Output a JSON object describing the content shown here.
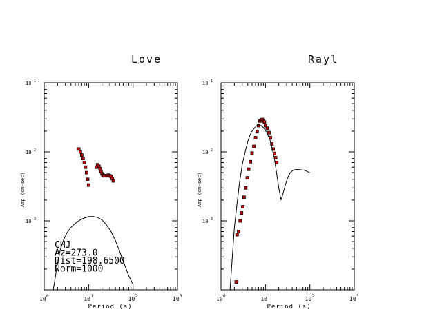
{
  "chart_data": [
    {
      "type": "scatter",
      "title": "Love",
      "xlabel": "Period (s)",
      "ylabel": "Amp (cm-sec)",
      "xscale": "log",
      "yscale": "log",
      "xlim": [
        1,
        1000
      ],
      "ylim": [
        0.0001,
        0.1
      ],
      "x_ticks": [
        "10⁰",
        "10¹",
        "10²",
        "10³"
      ],
      "y_ticks": [
        "10⁻¹",
        "10⁻²",
        "10⁻³"
      ],
      "annotations": [
        "CHJ",
        "Az=273.0",
        "Dist=198.6500",
        "Norm=1000"
      ],
      "series": [
        {
          "mode": "markers",
          "color": "#cc0000",
          "x": [
            6.0,
            6.5,
            7.0,
            7.5,
            8.0,
            8.5,
            9.0,
            9.5,
            10.0,
            15.0,
            16.0,
            17.0,
            18.0,
            19.0,
            20.0,
            21.0,
            22.0,
            24.0,
            26.0,
            28.0,
            30.0,
            32.0,
            34.0,
            36.0
          ],
          "y": [
            0.011,
            0.01,
            0.009,
            0.008,
            0.007,
            0.006,
            0.005,
            0.004,
            0.0033,
            0.006,
            0.0065,
            0.0062,
            0.0057,
            0.0052,
            0.0048,
            0.0046,
            0.0045,
            0.0045,
            0.0045,
            0.0046,
            0.0045,
            0.0044,
            0.0041,
            0.0038
          ]
        },
        {
          "mode": "line",
          "color": "#000000",
          "x": [
            1.6,
            1.8,
            2.0,
            2.3,
            2.7,
            3.2,
            4.0,
            5.0,
            6.3,
            8.0,
            10.0,
            12.6,
            16.0,
            20.0,
            25.0,
            32.0,
            40.0,
            50.0,
            63.0,
            80.0,
            100.0
          ],
          "y": [
            0.0001,
            0.00016,
            0.00025,
            0.00038,
            0.00052,
            0.00066,
            0.0008,
            0.00092,
            0.00102,
            0.0011,
            0.00115,
            0.00116,
            0.00112,
            0.00103,
            0.00088,
            0.0007,
            0.00052,
            0.00036,
            0.00024,
            0.00016,
            0.00012
          ]
        }
      ]
    },
    {
      "type": "scatter",
      "title": "Rayl",
      "xlabel": "Period (s)",
      "ylabel": "Amp (cm-sec)",
      "xscale": "log",
      "yscale": "log",
      "xlim": [
        1,
        1000
      ],
      "ylim": [
        0.0001,
        0.1
      ],
      "x_ticks": [
        "10⁰",
        "10¹",
        "10²",
        "10³"
      ],
      "y_ticks": [
        "10⁻¹",
        "10⁻²",
        "10⁻³"
      ],
      "series": [
        {
          "mode": "markers",
          "color": "#cc0000",
          "x": [
            2.2,
            2.3,
            2.5,
            2.7,
            2.9,
            3.1,
            3.3,
            3.6,
            3.9,
            4.2,
            4.6,
            5.0,
            5.5,
            6.0,
            6.5,
            7.0,
            7.5,
            8.0,
            8.5,
            9.0,
            9.5,
            10.0,
            11.0,
            12.0,
            13.0,
            14.0,
            15.0,
            16.0,
            17.0,
            18.0
          ],
          "y": [
            0.00013,
            0.00063,
            0.0007,
            0.001,
            0.0013,
            0.0016,
            0.0022,
            0.003,
            0.0042,
            0.0056,
            0.0072,
            0.0096,
            0.012,
            0.016,
            0.0196,
            0.024,
            0.028,
            0.029,
            0.0295,
            0.028,
            0.027,
            0.024,
            0.022,
            0.019,
            0.016,
            0.013,
            0.011,
            0.0095,
            0.0082,
            0.007
          ]
        },
        {
          "mode": "line",
          "color": "#000000",
          "x": [
            1.6,
            1.8,
            2.0,
            2.3,
            2.6,
            3.0,
            3.5,
            4.0,
            4.5,
            5.0,
            5.6,
            6.3,
            7.0,
            8.0,
            9.0,
            10.0,
            11.2,
            12.6,
            14.1,
            15.8,
            17.8,
            20.0,
            22.4,
            25.0,
            28.0,
            31.6,
            35.5,
            40.0,
            45.0,
            50.0,
            56.0,
            63.0,
            71.0,
            80.0,
            90.0,
            100.0
          ],
          "y": [
            0.0001,
            0.0003,
            0.0008,
            0.0018,
            0.0035,
            0.0065,
            0.01,
            0.014,
            0.0175,
            0.02,
            0.022,
            0.024,
            0.0245,
            0.024,
            0.0225,
            0.0205,
            0.018,
            0.015,
            0.0115,
            0.0082,
            0.005,
            0.003,
            0.002,
            0.0025,
            0.0033,
            0.0042,
            0.0049,
            0.0053,
            0.0055,
            0.00555,
            0.00555,
            0.0055,
            0.00545,
            0.00535,
            0.00515,
            0.005
          ]
        }
      ]
    }
  ]
}
